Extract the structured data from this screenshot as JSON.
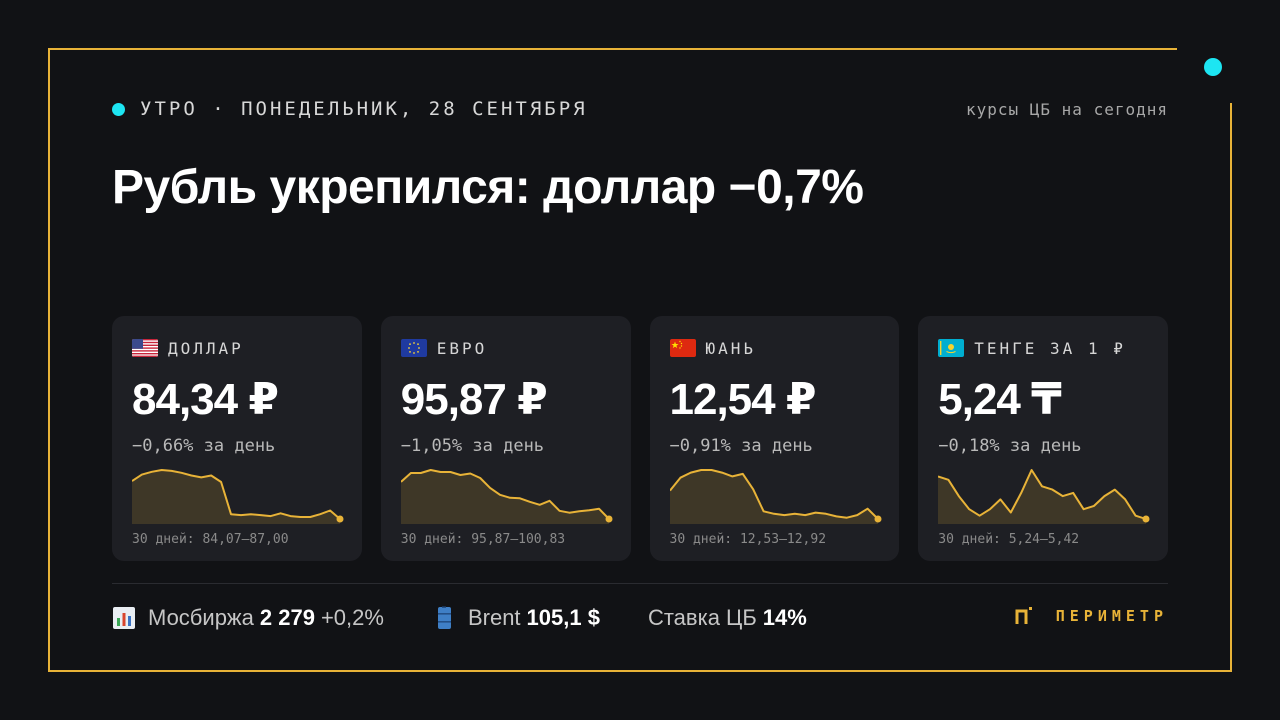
{
  "header": {
    "date_line": "УТРО · ПОНЕДЕЛЬНИК, 28 СЕНТЯБРЯ",
    "rates_note": "курсы ЦБ на сегодня"
  },
  "headline": "Рубль укрепился: доллар −0,7%",
  "cards": [
    {
      "label": "ДОЛЛАР",
      "flag": "us-flag",
      "value": "84,34 ₽",
      "change": "−0,66% за день",
      "range": "30 дней: 84,07–87,00",
      "sparkline": [
        86.4,
        86.75,
        86.9,
        87.0,
        86.95,
        86.85,
        86.7,
        86.6,
        86.7,
        86.35,
        84.6,
        84.55,
        84.6,
        84.55,
        84.5,
        84.65,
        84.5,
        84.45,
        84.45,
        84.6,
        84.8,
        84.34
      ]
    },
    {
      "label": "ЕВРО",
      "flag": "eu-flag",
      "value": "95,87 ₽",
      "change": "−1,05% за день",
      "range": "30 дней: 95,87–100,83",
      "sparkline": [
        99.6,
        100.5,
        100.5,
        100.8,
        100.6,
        100.6,
        100.3,
        100.45,
        100.0,
        99.0,
        98.3,
        98.0,
        97.95,
        97.6,
        97.3,
        97.7,
        96.7,
        96.5,
        96.65,
        96.75,
        96.9,
        95.87
      ]
    },
    {
      "label": "ЮАНЬ",
      "flag": "cn-flag",
      "value": "12,54 ₽",
      "change": "−0,91% за день",
      "range": "30 дней: 12,53–12,92",
      "sparkline": [
        12.76,
        12.86,
        12.9,
        12.92,
        12.92,
        12.9,
        12.87,
        12.89,
        12.77,
        12.6,
        12.58,
        12.57,
        12.58,
        12.57,
        12.59,
        12.58,
        12.56,
        12.55,
        12.57,
        12.62,
        12.54
      ]
    },
    {
      "label": "ТЕНГЕ ЗА 1 ₽",
      "flag": "kz-flag",
      "value": "5,24 ₸",
      "change": "−0,18% за день",
      "range": "30 дней: 5,24–5,42",
      "sparkline": [
        5.37,
        5.36,
        5.31,
        5.27,
        5.25,
        5.27,
        5.3,
        5.26,
        5.32,
        5.39,
        5.34,
        5.33,
        5.31,
        5.32,
        5.27,
        5.28,
        5.31,
        5.33,
        5.3,
        5.25,
        5.24
      ]
    }
  ],
  "footer": {
    "moex": {
      "label": "Мосбиржа",
      "value": "2 279",
      "delta": "+0,2%"
    },
    "brent": {
      "label": "Brent",
      "value": "105,1 $"
    },
    "rate": {
      "label": "Ставка ЦБ",
      "value": "14%"
    },
    "brand": "ПЕРИМЕТР"
  },
  "colors": {
    "accent_gold": "#e8b338",
    "accent_cyan": "#1de5f2",
    "background": "#111215",
    "card_bg": "#1e1f24"
  }
}
